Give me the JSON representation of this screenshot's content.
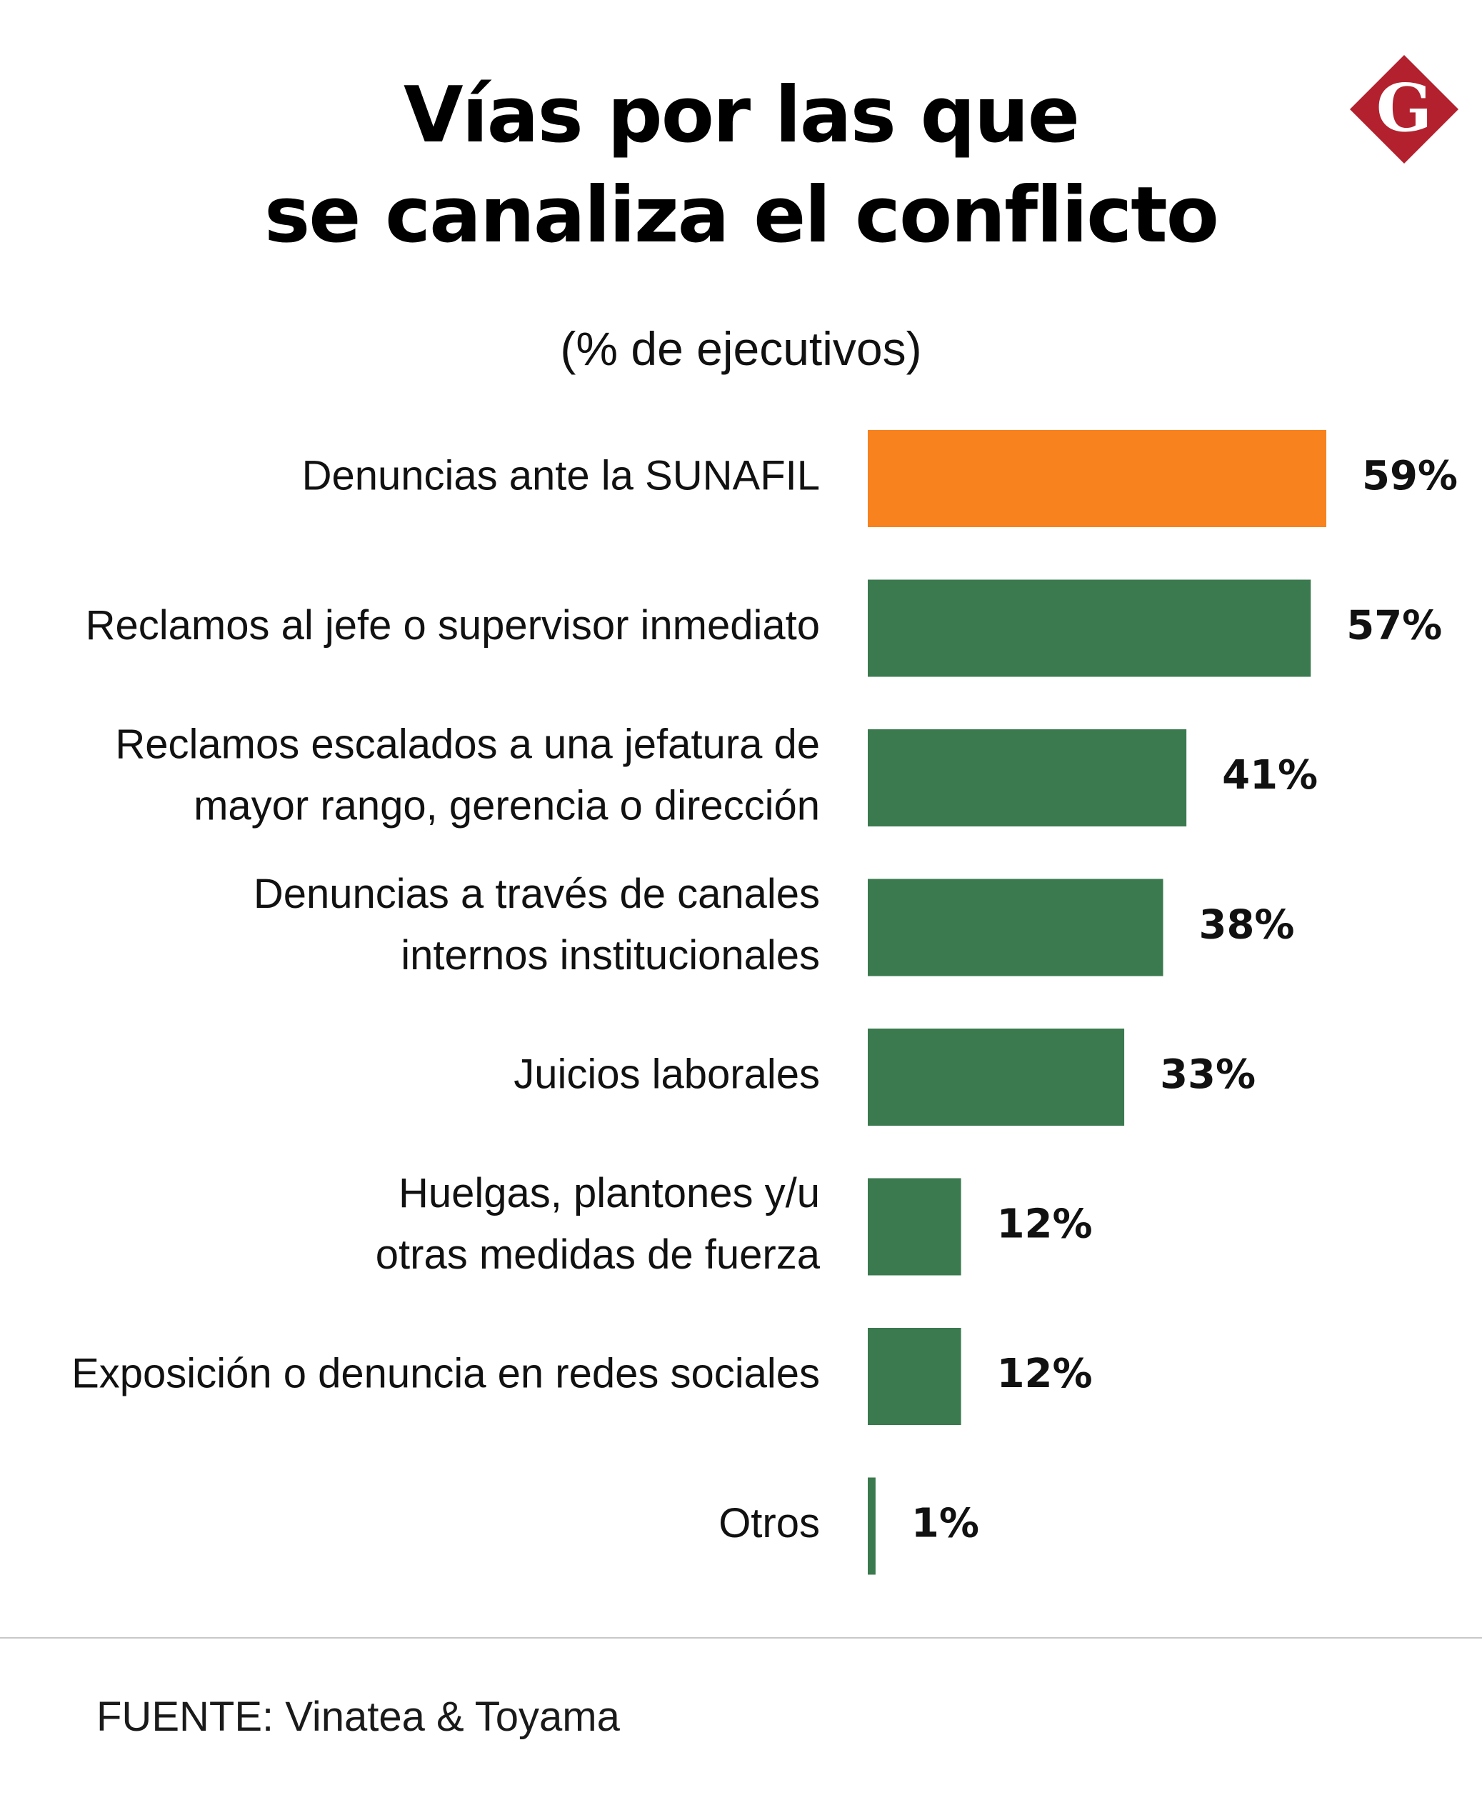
{
  "header": {
    "title_line1": "Vías por las que",
    "title_line2": "se canaliza el conflicto",
    "subtitle": "(% de ejecutivos)",
    "logo_letter": "G"
  },
  "colors": {
    "highlight": "#F7821E",
    "bar": "#3A7A4E",
    "logo": "#B3202E",
    "text": "#111111"
  },
  "chart_data": {
    "type": "bar",
    "orientation": "horizontal",
    "categories": [
      [
        "Denuncias ante la SUNAFIL"
      ],
      [
        "Reclamos al jefe o supervisor inmediato"
      ],
      [
        "Reclamos escalados a una jefatura de",
        "mayor rango, gerencia o dirección"
      ],
      [
        "Denuncias a través de canales",
        "internos institucionales"
      ],
      [
        "Juicios laborales"
      ],
      [
        "Huelgas, plantones y/u",
        "otras medidas de fuerza"
      ],
      [
        "Exposición o denuncia en redes sociales"
      ],
      [
        "Otros"
      ]
    ],
    "values": [
      59,
      57,
      41,
      38,
      33,
      12,
      12,
      1
    ],
    "value_labels": [
      "59%",
      "57%",
      "41%",
      "38%",
      "33%",
      "12%",
      "12%",
      "1%"
    ],
    "highlight_index": 0,
    "xlim": [
      0,
      59
    ],
    "grid": false,
    "legend": "none"
  },
  "footer": {
    "source": "FUENTE: Vinatea & Toyama"
  }
}
